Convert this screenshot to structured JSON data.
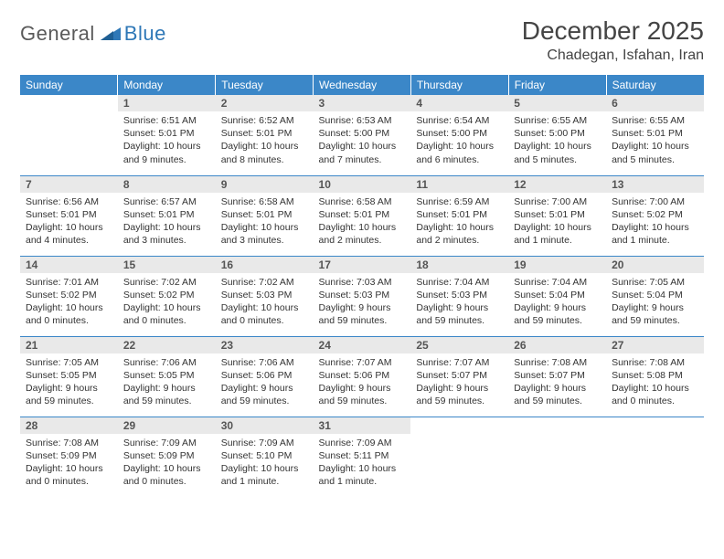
{
  "brand": {
    "part1": "General",
    "part2": "Blue"
  },
  "title": "December 2025",
  "location": "Chadegan, Isfahan, Iran",
  "colors": {
    "header_bg": "#3b87c8",
    "header_text": "#ffffff",
    "daynum_bg": "#e9e9e9",
    "cell_border": "#3b87c8",
    "logo_gray": "#5a5a5a",
    "logo_blue": "#2f78b7",
    "text": "#333333",
    "background": "#ffffff"
  },
  "weekdays": [
    "Sunday",
    "Monday",
    "Tuesday",
    "Wednesday",
    "Thursday",
    "Friday",
    "Saturday"
  ],
  "weeks": [
    [
      {
        "n": "",
        "sr": "",
        "ss": "",
        "dl": ""
      },
      {
        "n": "1",
        "sr": "Sunrise: 6:51 AM",
        "ss": "Sunset: 5:01 PM",
        "dl": "Daylight: 10 hours and 9 minutes."
      },
      {
        "n": "2",
        "sr": "Sunrise: 6:52 AM",
        "ss": "Sunset: 5:01 PM",
        "dl": "Daylight: 10 hours and 8 minutes."
      },
      {
        "n": "3",
        "sr": "Sunrise: 6:53 AM",
        "ss": "Sunset: 5:00 PM",
        "dl": "Daylight: 10 hours and 7 minutes."
      },
      {
        "n": "4",
        "sr": "Sunrise: 6:54 AM",
        "ss": "Sunset: 5:00 PM",
        "dl": "Daylight: 10 hours and 6 minutes."
      },
      {
        "n": "5",
        "sr": "Sunrise: 6:55 AM",
        "ss": "Sunset: 5:00 PM",
        "dl": "Daylight: 10 hours and 5 minutes."
      },
      {
        "n": "6",
        "sr": "Sunrise: 6:55 AM",
        "ss": "Sunset: 5:01 PM",
        "dl": "Daylight: 10 hours and 5 minutes."
      }
    ],
    [
      {
        "n": "7",
        "sr": "Sunrise: 6:56 AM",
        "ss": "Sunset: 5:01 PM",
        "dl": "Daylight: 10 hours and 4 minutes."
      },
      {
        "n": "8",
        "sr": "Sunrise: 6:57 AM",
        "ss": "Sunset: 5:01 PM",
        "dl": "Daylight: 10 hours and 3 minutes."
      },
      {
        "n": "9",
        "sr": "Sunrise: 6:58 AM",
        "ss": "Sunset: 5:01 PM",
        "dl": "Daylight: 10 hours and 3 minutes."
      },
      {
        "n": "10",
        "sr": "Sunrise: 6:58 AM",
        "ss": "Sunset: 5:01 PM",
        "dl": "Daylight: 10 hours and 2 minutes."
      },
      {
        "n": "11",
        "sr": "Sunrise: 6:59 AM",
        "ss": "Sunset: 5:01 PM",
        "dl": "Daylight: 10 hours and 2 minutes."
      },
      {
        "n": "12",
        "sr": "Sunrise: 7:00 AM",
        "ss": "Sunset: 5:01 PM",
        "dl": "Daylight: 10 hours and 1 minute."
      },
      {
        "n": "13",
        "sr": "Sunrise: 7:00 AM",
        "ss": "Sunset: 5:02 PM",
        "dl": "Daylight: 10 hours and 1 minute."
      }
    ],
    [
      {
        "n": "14",
        "sr": "Sunrise: 7:01 AM",
        "ss": "Sunset: 5:02 PM",
        "dl": "Daylight: 10 hours and 0 minutes."
      },
      {
        "n": "15",
        "sr": "Sunrise: 7:02 AM",
        "ss": "Sunset: 5:02 PM",
        "dl": "Daylight: 10 hours and 0 minutes."
      },
      {
        "n": "16",
        "sr": "Sunrise: 7:02 AM",
        "ss": "Sunset: 5:03 PM",
        "dl": "Daylight: 10 hours and 0 minutes."
      },
      {
        "n": "17",
        "sr": "Sunrise: 7:03 AM",
        "ss": "Sunset: 5:03 PM",
        "dl": "Daylight: 9 hours and 59 minutes."
      },
      {
        "n": "18",
        "sr": "Sunrise: 7:04 AM",
        "ss": "Sunset: 5:03 PM",
        "dl": "Daylight: 9 hours and 59 minutes."
      },
      {
        "n": "19",
        "sr": "Sunrise: 7:04 AM",
        "ss": "Sunset: 5:04 PM",
        "dl": "Daylight: 9 hours and 59 minutes."
      },
      {
        "n": "20",
        "sr": "Sunrise: 7:05 AM",
        "ss": "Sunset: 5:04 PM",
        "dl": "Daylight: 9 hours and 59 minutes."
      }
    ],
    [
      {
        "n": "21",
        "sr": "Sunrise: 7:05 AM",
        "ss": "Sunset: 5:05 PM",
        "dl": "Daylight: 9 hours and 59 minutes."
      },
      {
        "n": "22",
        "sr": "Sunrise: 7:06 AM",
        "ss": "Sunset: 5:05 PM",
        "dl": "Daylight: 9 hours and 59 minutes."
      },
      {
        "n": "23",
        "sr": "Sunrise: 7:06 AM",
        "ss": "Sunset: 5:06 PM",
        "dl": "Daylight: 9 hours and 59 minutes."
      },
      {
        "n": "24",
        "sr": "Sunrise: 7:07 AM",
        "ss": "Sunset: 5:06 PM",
        "dl": "Daylight: 9 hours and 59 minutes."
      },
      {
        "n": "25",
        "sr": "Sunrise: 7:07 AM",
        "ss": "Sunset: 5:07 PM",
        "dl": "Daylight: 9 hours and 59 minutes."
      },
      {
        "n": "26",
        "sr": "Sunrise: 7:08 AM",
        "ss": "Sunset: 5:07 PM",
        "dl": "Daylight: 9 hours and 59 minutes."
      },
      {
        "n": "27",
        "sr": "Sunrise: 7:08 AM",
        "ss": "Sunset: 5:08 PM",
        "dl": "Daylight: 10 hours and 0 minutes."
      }
    ],
    [
      {
        "n": "28",
        "sr": "Sunrise: 7:08 AM",
        "ss": "Sunset: 5:09 PM",
        "dl": "Daylight: 10 hours and 0 minutes."
      },
      {
        "n": "29",
        "sr": "Sunrise: 7:09 AM",
        "ss": "Sunset: 5:09 PM",
        "dl": "Daylight: 10 hours and 0 minutes."
      },
      {
        "n": "30",
        "sr": "Sunrise: 7:09 AM",
        "ss": "Sunset: 5:10 PM",
        "dl": "Daylight: 10 hours and 1 minute."
      },
      {
        "n": "31",
        "sr": "Sunrise: 7:09 AM",
        "ss": "Sunset: 5:11 PM",
        "dl": "Daylight: 10 hours and 1 minute."
      },
      {
        "n": "",
        "sr": "",
        "ss": "",
        "dl": ""
      },
      {
        "n": "",
        "sr": "",
        "ss": "",
        "dl": ""
      },
      {
        "n": "",
        "sr": "",
        "ss": "",
        "dl": ""
      }
    ]
  ]
}
